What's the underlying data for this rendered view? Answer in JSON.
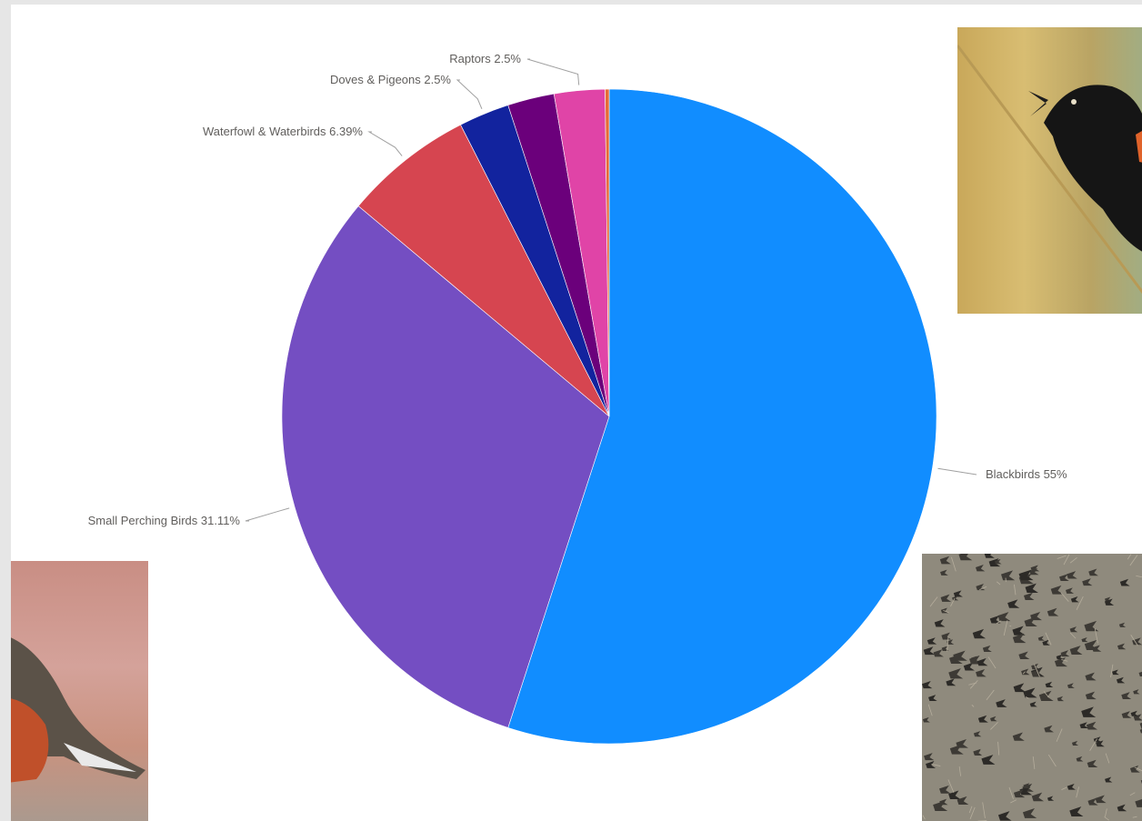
{
  "chart_data": {
    "type": "pie",
    "title": "",
    "start_angle_deg": 0,
    "direction": "clockwise",
    "slices": [
      {
        "category": "Blackbirds",
        "value": 55,
        "label": "Blackbirds 55%",
        "color": "#118DFF"
      },
      {
        "category": "Small Perching Birds",
        "value": 31.11,
        "label": "Small Perching Birds 31.11%",
        "color": "#744EC2"
      },
      {
        "category": "Waterfowl & Waterbirds",
        "value": 6.39,
        "label": "Waterfowl & Waterbirds 6.39%",
        "color": "#D64550"
      },
      {
        "category": "Doves & Pigeons",
        "value": 2.5,
        "label": "Doves & Pigeons 2.5%",
        "color": "#12239E"
      },
      {
        "category": "",
        "value": 2.3,
        "label": "",
        "color": "#6B007B"
      },
      {
        "category": "Raptors",
        "value": 2.5,
        "label": "Raptors 2.5%",
        "color": "#E044A7"
      },
      {
        "category": "",
        "value": 0.2,
        "label": "",
        "color": "#E66C37"
      }
    ]
  },
  "photos": [
    {
      "name": "red-winged-blackbird-photo"
    },
    {
      "name": "robin-photo"
    },
    {
      "name": "blackbird-flock-photo"
    }
  ]
}
